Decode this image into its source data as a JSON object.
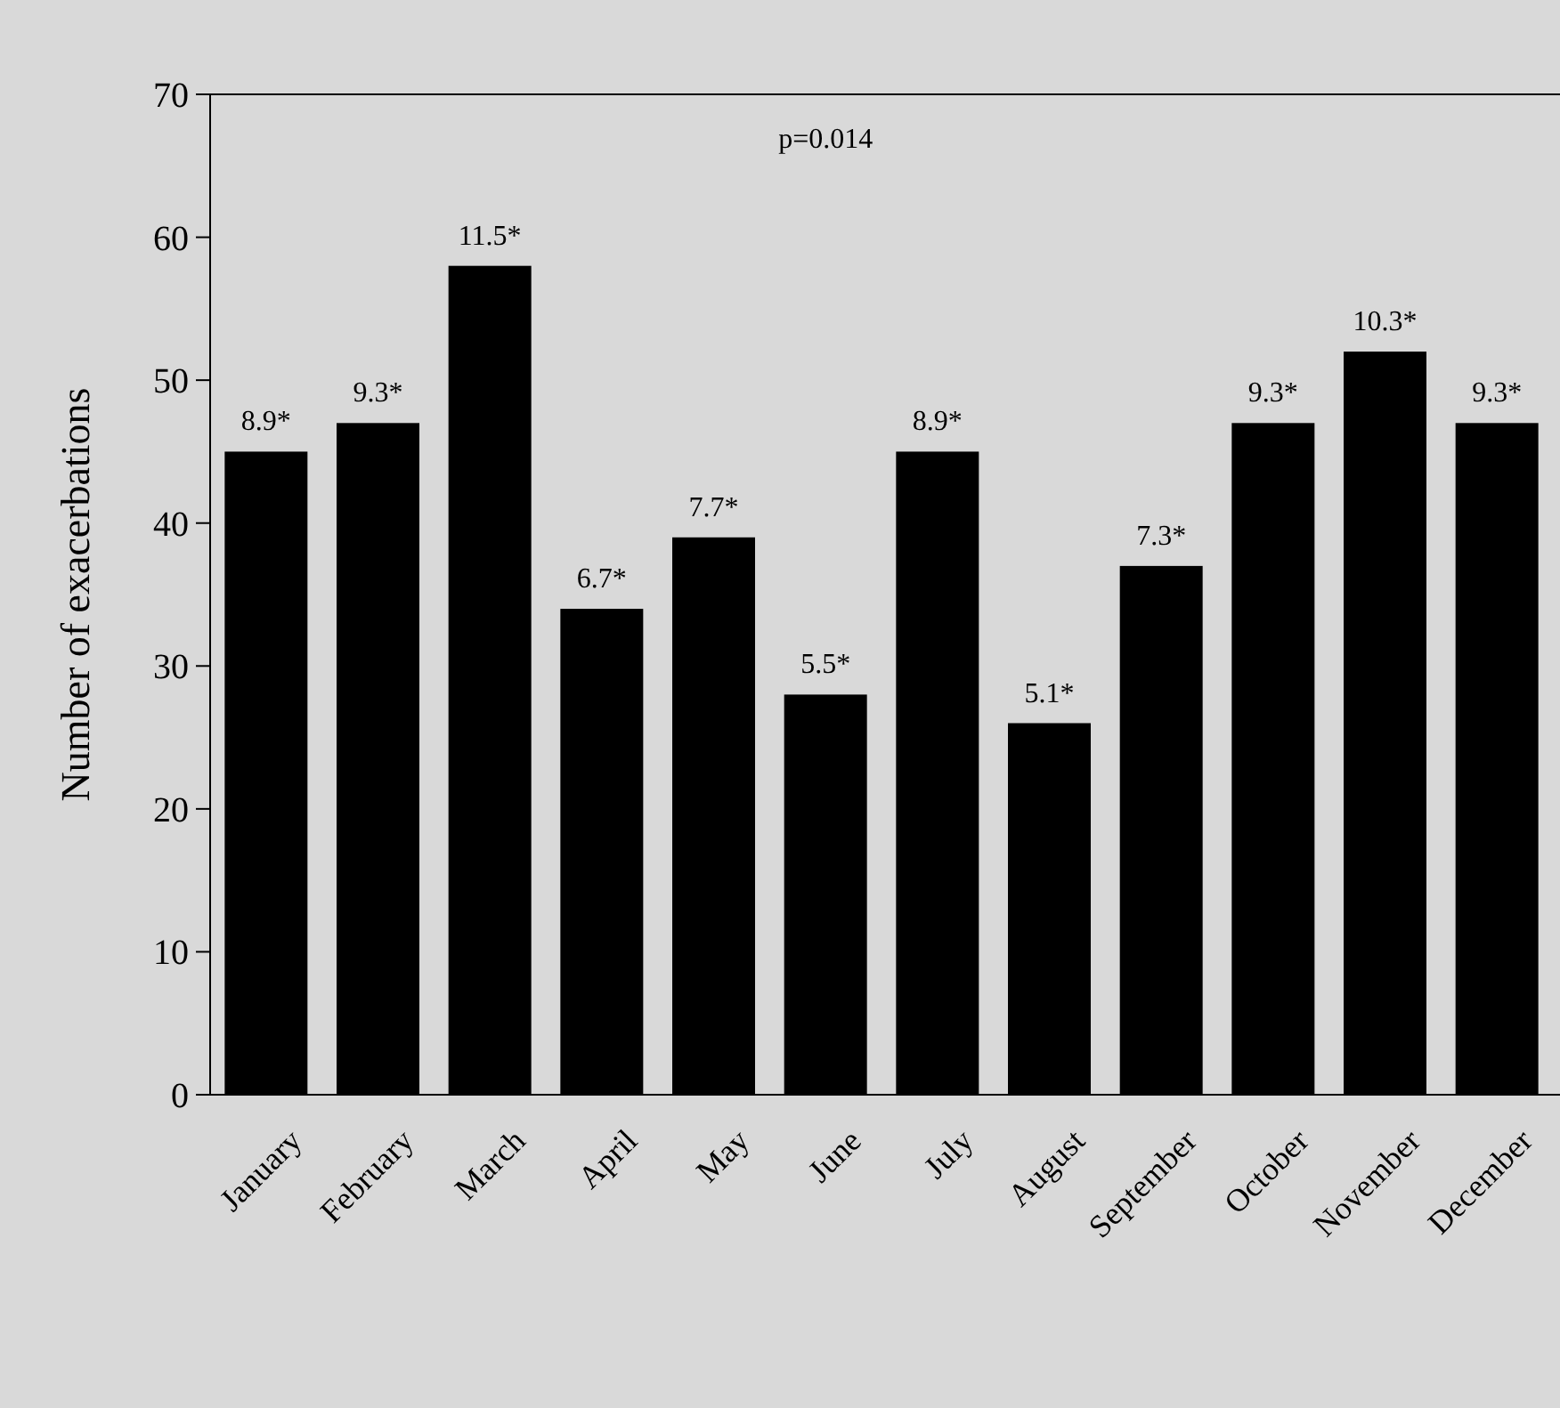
{
  "chart_data": {
    "type": "bar",
    "ylabel": "Number of exacerbations",
    "categories": [
      "January",
      "February",
      "March",
      "April",
      "May",
      "June",
      "July",
      "August",
      "September",
      "October",
      "November",
      "December"
    ],
    "values": [
      45,
      47,
      58,
      34,
      39,
      28,
      45,
      26,
      37,
      47,
      52,
      47
    ],
    "color": "#000000",
    "ylim": [
      0,
      70
    ],
    "yticks": [
      0,
      10,
      20,
      30,
      40,
      50,
      60,
      70
    ],
    "grid": false,
    "annotations": [
      "p=0.014",
      {
        "text": "8.9*",
        "x": "January",
        "y": 45
      },
      {
        "text": "9.3*",
        "x": "February",
        "y": 47
      },
      {
        "text": "11.5*",
        "x": "March",
        "y": 58
      },
      {
        "text": "6.7*",
        "x": "April",
        "y": 34
      },
      {
        "text": "7.7*",
        "x": "May",
        "y": 39
      },
      {
        "text": "5.5*",
        "x": "June",
        "y": 28
      },
      {
        "text": "8.9*",
        "x": "July",
        "y": 45
      },
      {
        "text": "5.1*",
        "x": "August",
        "y": 26
      },
      {
        "text": "7.3*",
        "x": "September",
        "y": 37
      },
      {
        "text": "9.3*",
        "x": "October",
        "y": 47
      },
      {
        "text": "10.3*",
        "x": "November",
        "y": 52
      },
      {
        "text": "9.3*",
        "x": "December",
        "y": 47
      }
    ]
  }
}
